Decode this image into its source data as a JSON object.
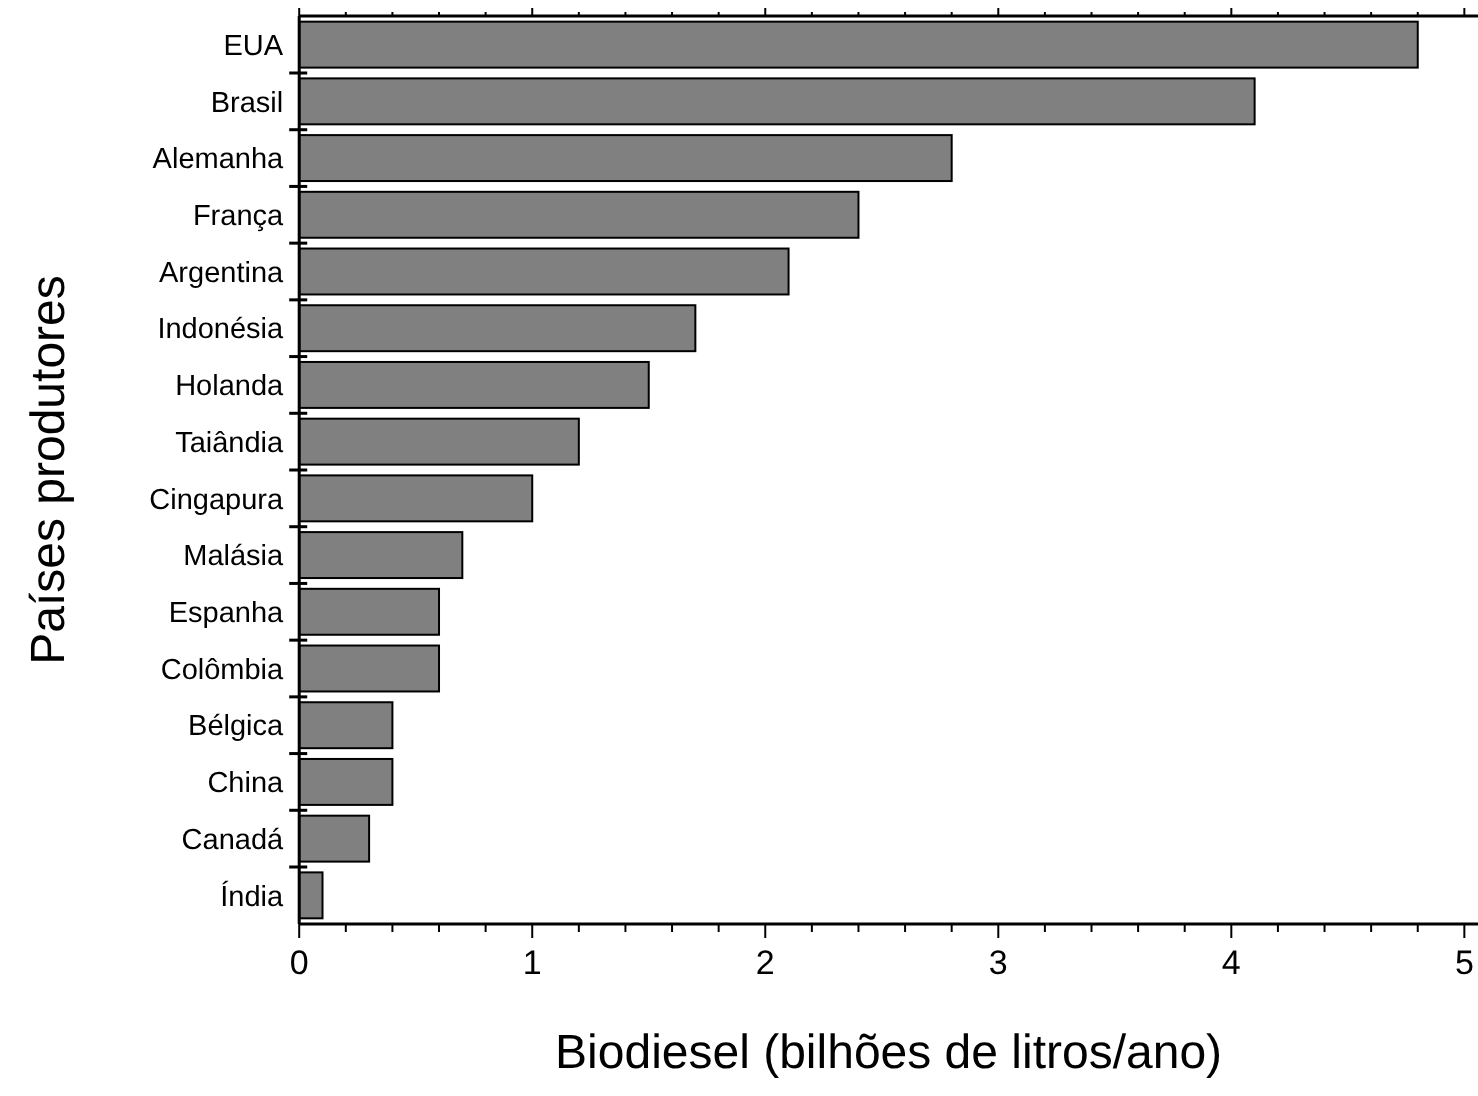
{
  "chart_data": {
    "type": "bar",
    "orientation": "horizontal",
    "xlabel": "Biodiesel (bilhões de litros/ano)",
    "ylabel": "Países produtores",
    "categories": [
      "EUA",
      "Brasil",
      "Alemanha",
      "França",
      "Argentina",
      "Indonésia",
      "Holanda",
      "Taiândia",
      "Cingapura",
      "Malásia",
      "Espanha",
      "Colômbia",
      "Bélgica",
      "China",
      "Canadá",
      "Índia"
    ],
    "values": [
      4.8,
      4.1,
      2.8,
      2.4,
      2.1,
      1.7,
      1.5,
      1.2,
      1.0,
      0.7,
      0.6,
      0.6,
      0.4,
      0.4,
      0.3,
      0.1
    ],
    "color": "#808080",
    "xlim": [
      0,
      5.05
    ],
    "xticks": [
      0,
      {
        "value": 0.2,
        "label": null
      },
      {
        "value": 0.4,
        "label": null
      },
      {
        "value": 0.6,
        "label": null
      },
      {
        "value": 0.8,
        "label": null
      },
      1,
      {
        "value": 1.2,
        "label": null
      },
      {
        "value": 1.4,
        "label": null
      },
      {
        "value": 1.6,
        "label": null
      },
      {
        "value": 1.8,
        "label": null
      },
      2,
      {
        "value": 2.2,
        "label": null
      },
      {
        "value": 2.4,
        "label": null
      },
      {
        "value": 2.6,
        "label": null
      },
      {
        "value": 2.8,
        "label": null
      },
      3,
      {
        "value": 3.2,
        "label": null
      },
      {
        "value": 3.4,
        "label": null
      },
      {
        "value": 3.6,
        "label": null
      },
      {
        "value": 3.8,
        "label": null
      },
      4,
      {
        "value": 4.2,
        "label": null
      },
      {
        "value": 4.4,
        "label": null
      },
      {
        "value": 4.6,
        "label": null
      },
      {
        "value": 4.8,
        "label": null
      },
      5
    ],
    "grid": false
  }
}
